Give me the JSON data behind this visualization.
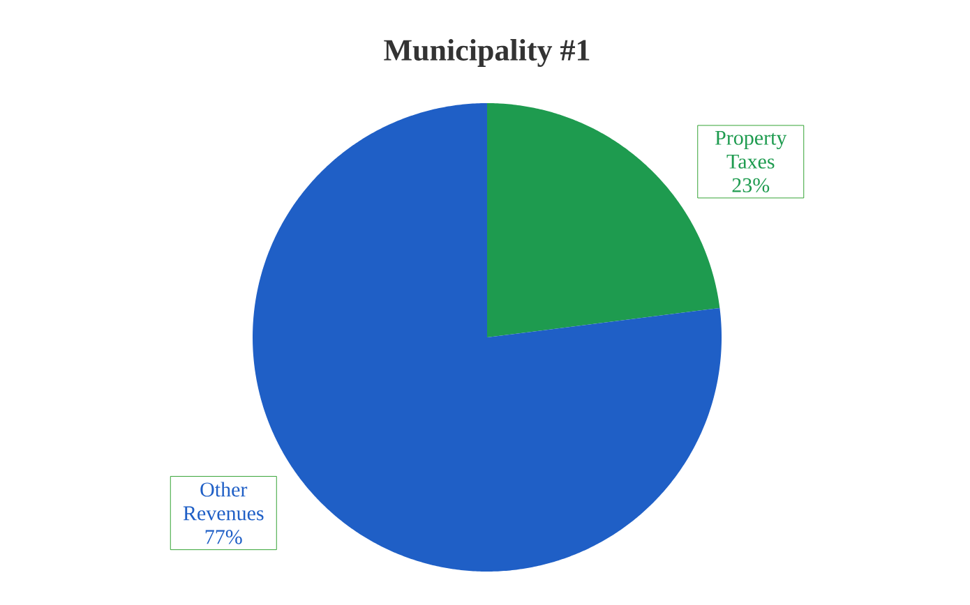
{
  "chart_data": {
    "type": "pie",
    "title": "Municipality #1",
    "categories": [
      "Property Taxes",
      "Other Revenues"
    ],
    "values": [
      23,
      77
    ],
    "colors": [
      "#1e9b4f",
      "#1f5fc6"
    ],
    "value_labels": [
      "23%",
      "77%"
    ]
  }
}
